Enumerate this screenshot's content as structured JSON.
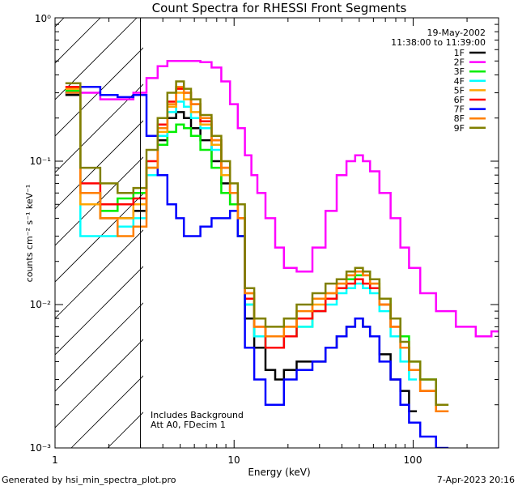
{
  "chart_data": {
    "type": "line",
    "title": "Count Spectra for RHESSI Front Segments",
    "xlabel": "Energy (keV)",
    "ylabel": "counts cm⁻² s⁻¹ keV⁻¹",
    "x_scale": "log",
    "y_scale": "log",
    "xlim": [
      1,
      300
    ],
    "ylim": [
      0.001,
      1
    ],
    "x_tick_labels": [
      "1",
      "10",
      "100"
    ],
    "y_tick_labels": [
      "10⁻³",
      "10⁻²",
      "10⁻¹",
      "10⁰"
    ],
    "date": "19-May-2002",
    "time_range": "11:38:00 to 11:39:00",
    "annotations": [
      "Includes Background",
      "Att A0, FDecim 1"
    ],
    "footer_left": "Generated by hsi_min_spectra_plot.pro",
    "footer_right": "7-Apr-2023 20:16",
    "hatched_region_max_keV": 3,
    "series": [
      {
        "name": "1F",
        "color": "#000000",
        "x": [
          1.2,
          1.6,
          2,
          2.5,
          3,
          3.5,
          4,
          4.5,
          5,
          5.5,
          6,
          7,
          8,
          9,
          10,
          11,
          12,
          14,
          16,
          18,
          20,
          25,
          30,
          35,
          40,
          45,
          50,
          55,
          60,
          70,
          80,
          90,
          100
        ],
        "values": [
          0.29,
          0.05,
          0.04,
          0.04,
          0.045,
          0.08,
          0.14,
          0.2,
          0.22,
          0.2,
          0.17,
          0.14,
          0.1,
          0.07,
          0.05,
          0.03,
          0.008,
          0.005,
          0.0035,
          0.003,
          0.0035,
          0.004,
          0.004,
          0.005,
          0.006,
          0.007,
          0.008,
          0.007,
          0.006,
          0.0045,
          0.003,
          0.0025,
          0.0018
        ]
      },
      {
        "name": "2F",
        "color": "#ff00ff",
        "x": [
          1.2,
          1.6,
          2,
          2.5,
          3,
          3.5,
          4,
          4.5,
          5,
          5.5,
          6,
          7,
          8,
          9,
          10,
          11,
          12,
          13,
          14,
          16,
          18,
          20,
          25,
          30,
          35,
          40,
          45,
          50,
          55,
          60,
          70,
          80,
          90,
          100,
          120,
          150,
          200,
          250,
          300
        ],
        "values": [
          0.3,
          0.3,
          0.27,
          0.27,
          0.3,
          0.38,
          0.46,
          0.5,
          0.5,
          0.5,
          0.5,
          0.49,
          0.45,
          0.36,
          0.25,
          0.17,
          0.11,
          0.08,
          0.06,
          0.04,
          0.025,
          0.018,
          0.017,
          0.025,
          0.045,
          0.08,
          0.1,
          0.11,
          0.1,
          0.085,
          0.06,
          0.04,
          0.025,
          0.018,
          0.012,
          0.009,
          0.007,
          0.006,
          0.0065
        ]
      },
      {
        "name": "3F",
        "color": "#00ee00",
        "x": [
          1.2,
          1.6,
          2,
          2.5,
          3,
          3.5,
          4,
          4.5,
          5,
          5.5,
          6,
          7,
          8,
          9,
          10,
          11,
          12,
          14,
          16,
          18,
          20,
          25,
          30,
          35,
          40,
          45,
          50,
          55,
          60,
          70,
          80,
          90,
          100,
          120,
          150
        ],
        "values": [
          0.31,
          0.06,
          0.045,
          0.055,
          0.06,
          0.09,
          0.13,
          0.16,
          0.18,
          0.17,
          0.15,
          0.12,
          0.09,
          0.06,
          0.05,
          0.03,
          0.01,
          0.006,
          0.005,
          0.005,
          0.006,
          0.007,
          0.009,
          0.011,
          0.013,
          0.015,
          0.016,
          0.017,
          0.015,
          0.011,
          0.008,
          0.006,
          0.004,
          0.003,
          0.002
        ]
      },
      {
        "name": "4F",
        "color": "#00ffff",
        "x": [
          1.2,
          1.6,
          2,
          2.5,
          3,
          3.5,
          4,
          4.5,
          5,
          5.5,
          6,
          7,
          8,
          9,
          10,
          11,
          12,
          14,
          16,
          18,
          20,
          25,
          30,
          35,
          40,
          45,
          50,
          55,
          60,
          70,
          80,
          90,
          100
        ],
        "values": [
          0.3,
          0.03,
          0.03,
          0.035,
          0.04,
          0.08,
          0.15,
          0.22,
          0.26,
          0.24,
          0.2,
          0.17,
          0.12,
          0.08,
          0.06,
          0.04,
          0.01,
          0.006,
          0.005,
          0.005,
          0.006,
          0.007,
          0.009,
          0.01,
          0.012,
          0.013,
          0.014,
          0.013,
          0.012,
          0.009,
          0.006,
          0.004,
          0.003
        ]
      },
      {
        "name": "5F",
        "color": "#ffa500",
        "x": [
          1.2,
          1.6,
          2,
          2.5,
          3,
          3.5,
          4,
          4.5,
          5,
          5.5,
          6,
          7,
          8,
          9,
          10,
          11,
          12,
          14,
          16,
          18,
          20,
          25,
          30,
          35,
          40,
          45,
          50,
          55,
          60,
          70,
          80,
          90,
          100,
          120,
          150
        ],
        "values": [
          0.32,
          0.05,
          0.04,
          0.04,
          0.05,
          0.09,
          0.16,
          0.24,
          0.3,
          0.27,
          0.22,
          0.18,
          0.13,
          0.08,
          0.06,
          0.04,
          0.012,
          0.007,
          0.006,
          0.006,
          0.007,
          0.008,
          0.01,
          0.012,
          0.014,
          0.016,
          0.017,
          0.016,
          0.014,
          0.01,
          0.007,
          0.005,
          0.0035,
          0.0025,
          0.0018
        ]
      },
      {
        "name": "6F",
        "color": "#ff0000",
        "x": [
          1.2,
          1.6,
          2,
          2.5,
          3,
          3.5,
          4,
          4.5,
          5,
          5.5,
          6,
          7,
          8,
          9,
          10,
          11,
          12,
          14,
          16,
          18,
          20,
          25,
          30,
          35,
          40,
          45,
          50,
          55,
          60,
          70,
          80,
          90,
          100,
          120,
          150
        ],
        "values": [
          0.33,
          0.07,
          0.05,
          0.05,
          0.055,
          0.1,
          0.18,
          0.26,
          0.32,
          0.3,
          0.25,
          0.19,
          0.14,
          0.09,
          0.06,
          0.04,
          0.011,
          0.007,
          0.005,
          0.005,
          0.006,
          0.008,
          0.009,
          0.011,
          0.013,
          0.014,
          0.015,
          0.014,
          0.013,
          0.01,
          0.007,
          0.005,
          0.0035,
          0.0025,
          0.0018
        ]
      },
      {
        "name": "7F",
        "color": "#0000ff",
        "x": [
          1.2,
          1.6,
          2,
          2.5,
          3,
          3.5,
          4,
          4.5,
          5,
          5.5,
          6,
          7,
          8,
          9,
          10,
          11,
          12,
          14,
          16,
          18,
          20,
          25,
          30,
          35,
          40,
          45,
          50,
          55,
          60,
          70,
          80,
          90,
          100,
          120,
          150
        ],
        "values": [
          0.3,
          0.33,
          0.29,
          0.28,
          0.29,
          0.15,
          0.08,
          0.05,
          0.04,
          0.03,
          0.03,
          0.035,
          0.04,
          0.04,
          0.045,
          0.03,
          0.005,
          0.003,
          0.002,
          0.002,
          0.003,
          0.0035,
          0.004,
          0.005,
          0.006,
          0.007,
          0.008,
          0.007,
          0.006,
          0.004,
          0.003,
          0.002,
          0.0015,
          0.0012,
          0.001
        ]
      },
      {
        "name": "8F",
        "color": "#ff7f00",
        "x": [
          1.2,
          1.6,
          2,
          2.5,
          3,
          3.5,
          4,
          4.5,
          5,
          5.5,
          6,
          7,
          8,
          9,
          10,
          11,
          12,
          14,
          16,
          18,
          20,
          25,
          30,
          35,
          40,
          45,
          50,
          55,
          60,
          70,
          80,
          90,
          100,
          120,
          150
        ],
        "values": [
          0.3,
          0.06,
          0.04,
          0.03,
          0.035,
          0.09,
          0.17,
          0.25,
          0.33,
          0.3,
          0.25,
          0.2,
          0.14,
          0.09,
          0.06,
          0.04,
          0.012,
          0.007,
          0.006,
          0.006,
          0.007,
          0.009,
          0.011,
          0.012,
          0.014,
          0.016,
          0.017,
          0.016,
          0.014,
          0.01,
          0.007,
          0.005,
          0.0035,
          0.0025,
          0.0018
        ]
      },
      {
        "name": "9F",
        "color": "#808000",
        "x": [
          1.2,
          1.6,
          2,
          2.5,
          3,
          3.5,
          4,
          4.5,
          5,
          5.5,
          6,
          7,
          8,
          9,
          10,
          11,
          12,
          14,
          16,
          18,
          20,
          25,
          30,
          35,
          40,
          45,
          50,
          55,
          60,
          70,
          80,
          90,
          100,
          120,
          150
        ],
        "values": [
          0.35,
          0.09,
          0.07,
          0.06,
          0.065,
          0.12,
          0.2,
          0.3,
          0.36,
          0.32,
          0.27,
          0.21,
          0.15,
          0.1,
          0.07,
          0.05,
          0.013,
          0.008,
          0.007,
          0.007,
          0.008,
          0.01,
          0.012,
          0.014,
          0.015,
          0.017,
          0.018,
          0.017,
          0.015,
          0.011,
          0.008,
          0.0055,
          0.004,
          0.003,
          0.002
        ]
      }
    ]
  }
}
